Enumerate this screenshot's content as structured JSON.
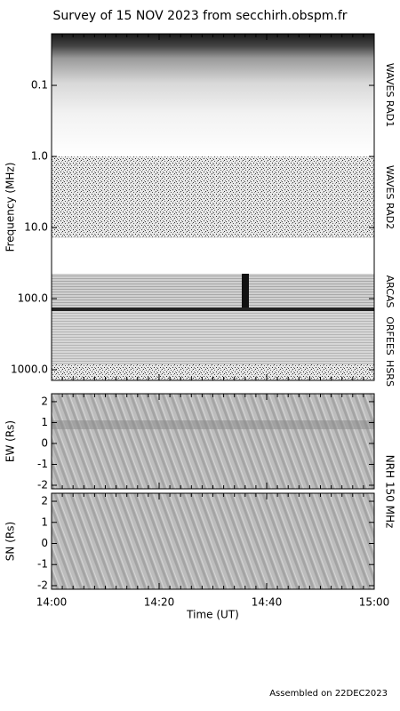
{
  "title": "Survey of 15 NOV 2023 from secchirh.obspm.fr",
  "chart_data": [
    {
      "type": "spectrogram",
      "ylabel": "Frequency (MHz)",
      "log_scale": true,
      "inverted": true,
      "ylim": [
        0.0188,
        1413
      ],
      "yticks": [
        {
          "value": 0.1,
          "label": "0.1"
        },
        {
          "value": 1,
          "label": "1.0"
        },
        {
          "value": 10,
          "label": "10.0"
        },
        {
          "value": 100,
          "label": "100.0"
        },
        {
          "value": 1000,
          "label": "1000.0"
        }
      ],
      "bands": [
        "WAVES RAD1",
        "WAVES RAD2",
        "ARCAS",
        "ORFEES",
        "HSRS"
      ]
    },
    {
      "type": "image",
      "ylabel": "EW (Rs)",
      "ylim": [
        -2.17,
        2.38
      ],
      "yticks": [
        2,
        1,
        0,
        -1,
        -2
      ]
    },
    {
      "type": "image",
      "ylabel": "SN (Rs)",
      "ylim": [
        -2.17,
        2.38
      ],
      "yticks": [
        2,
        1,
        0,
        -1,
        -2
      ],
      "xlabel": "Time (UT)",
      "xlim": [
        "14:00",
        "15:00"
      ],
      "xticks": [
        "14:00",
        "14:20",
        "14:40",
        "15:00"
      ]
    }
  ],
  "side_label": "NRH 150 MHz",
  "footer": "Assembled on 22DEC2023"
}
